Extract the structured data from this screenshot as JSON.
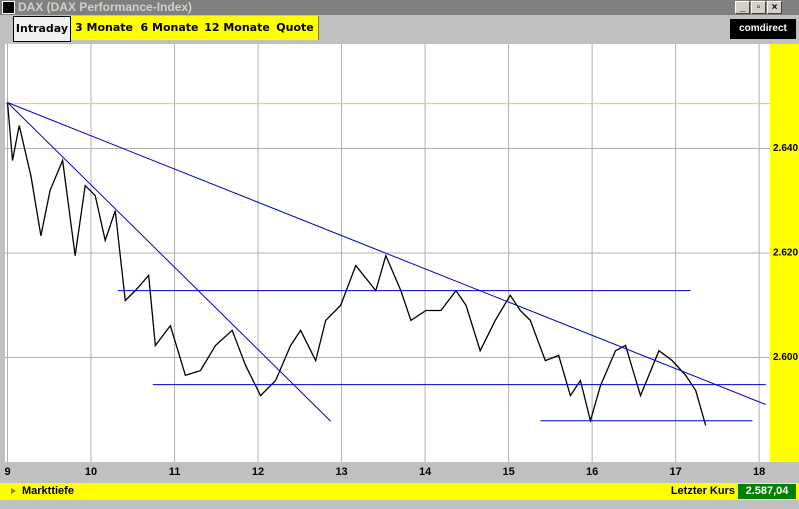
{
  "window": {
    "title": "DAX (DAX Performance-Index)"
  },
  "tabs": [
    "Intraday",
    "3 Monate",
    "6 Monate",
    "12 Monate",
    "Quote"
  ],
  "logo": "comdirect",
  "chart_data": {
    "type": "line",
    "x": [
      9.0,
      9.06,
      9.14,
      9.28,
      9.4,
      9.51,
      9.66,
      9.81,
      9.93,
      10.05,
      10.17,
      10.29,
      10.41,
      10.53,
      10.69,
      10.77,
      10.95,
      11.13,
      11.31,
      11.49,
      11.69,
      11.85,
      12.03,
      12.21,
      12.39,
      12.51,
      12.69,
      12.81,
      12.99,
      13.17,
      13.41,
      13.53,
      13.71,
      13.83,
      14.01,
      14.19,
      14.37,
      14.49,
      14.66,
      14.84,
      15.02,
      15.14,
      15.26,
      15.44,
      15.6,
      15.74,
      15.86,
      15.98,
      16.1,
      16.28,
      16.4,
      16.58,
      16.8,
      16.96,
      17.12,
      17.24,
      17.36
    ],
    "values": [
      2648.8,
      2637.7,
      2644.4,
      2634.8,
      2623.3,
      2632.0,
      2637.7,
      2619.5,
      2632.9,
      2631.0,
      2622.4,
      2628.1,
      2610.9,
      2612.8,
      2615.7,
      2602.3,
      2606.1,
      2596.6,
      2597.5,
      2602.3,
      2605.2,
      2598.5,
      2592.7,
      2595.6,
      2602.3,
      2605.2,
      2599.4,
      2607.1,
      2610.0,
      2617.6,
      2612.8,
      2619.5,
      2612.8,
      2607.1,
      2609.0,
      2609.0,
      2612.8,
      2610.0,
      2601.3,
      2607.1,
      2611.9,
      2609.0,
      2607.1,
      2599.4,
      2600.4,
      2592.7,
      2595.6,
      2587.9,
      2594.6,
      2601.3,
      2602.3,
      2592.7,
      2601.3,
      2599.4,
      2596.6,
      2593.7,
      2587.0
    ],
    "color": "#000000",
    "xlim": [
      8.97,
      18.13
    ],
    "xticks": [
      9,
      10,
      11,
      12,
      13,
      14,
      15,
      16,
      17,
      18
    ],
    "ylim": [
      2580,
      2660
    ],
    "yticks": [
      {
        "value": 2600,
        "label": "2.600"
      },
      {
        "value": 2620,
        "label": "2.620"
      },
      {
        "value": 2640,
        "label": "2.640"
      }
    ],
    "grid": true,
    "reference_line": {
      "value": 2648.6,
      "color": "#e0e000"
    },
    "trendlines": [
      {
        "x": [
          9.0,
          18.08
        ],
        "y": [
          2648.8,
          2591.0
        ],
        "color": "#0000cc"
      },
      {
        "x": [
          9.0,
          12.87
        ],
        "y": [
          2648.8,
          2587.8
        ],
        "color": "#0000cc"
      },
      {
        "x": [
          10.32,
          17.18
        ],
        "y": [
          2612.8,
          2612.8
        ],
        "color": "#0000cc"
      },
      {
        "x": [
          10.74,
          18.08
        ],
        "y": [
          2594.8,
          2594.8
        ],
        "color": "#0000cc"
      },
      {
        "x": [
          15.38,
          17.92
        ],
        "y": [
          2587.9,
          2587.9
        ],
        "color": "#0000cc"
      }
    ]
  },
  "footer": {
    "left": "Markttiefe",
    "right_label": "Letzter Kurs",
    "right_value": "2.587,04"
  }
}
